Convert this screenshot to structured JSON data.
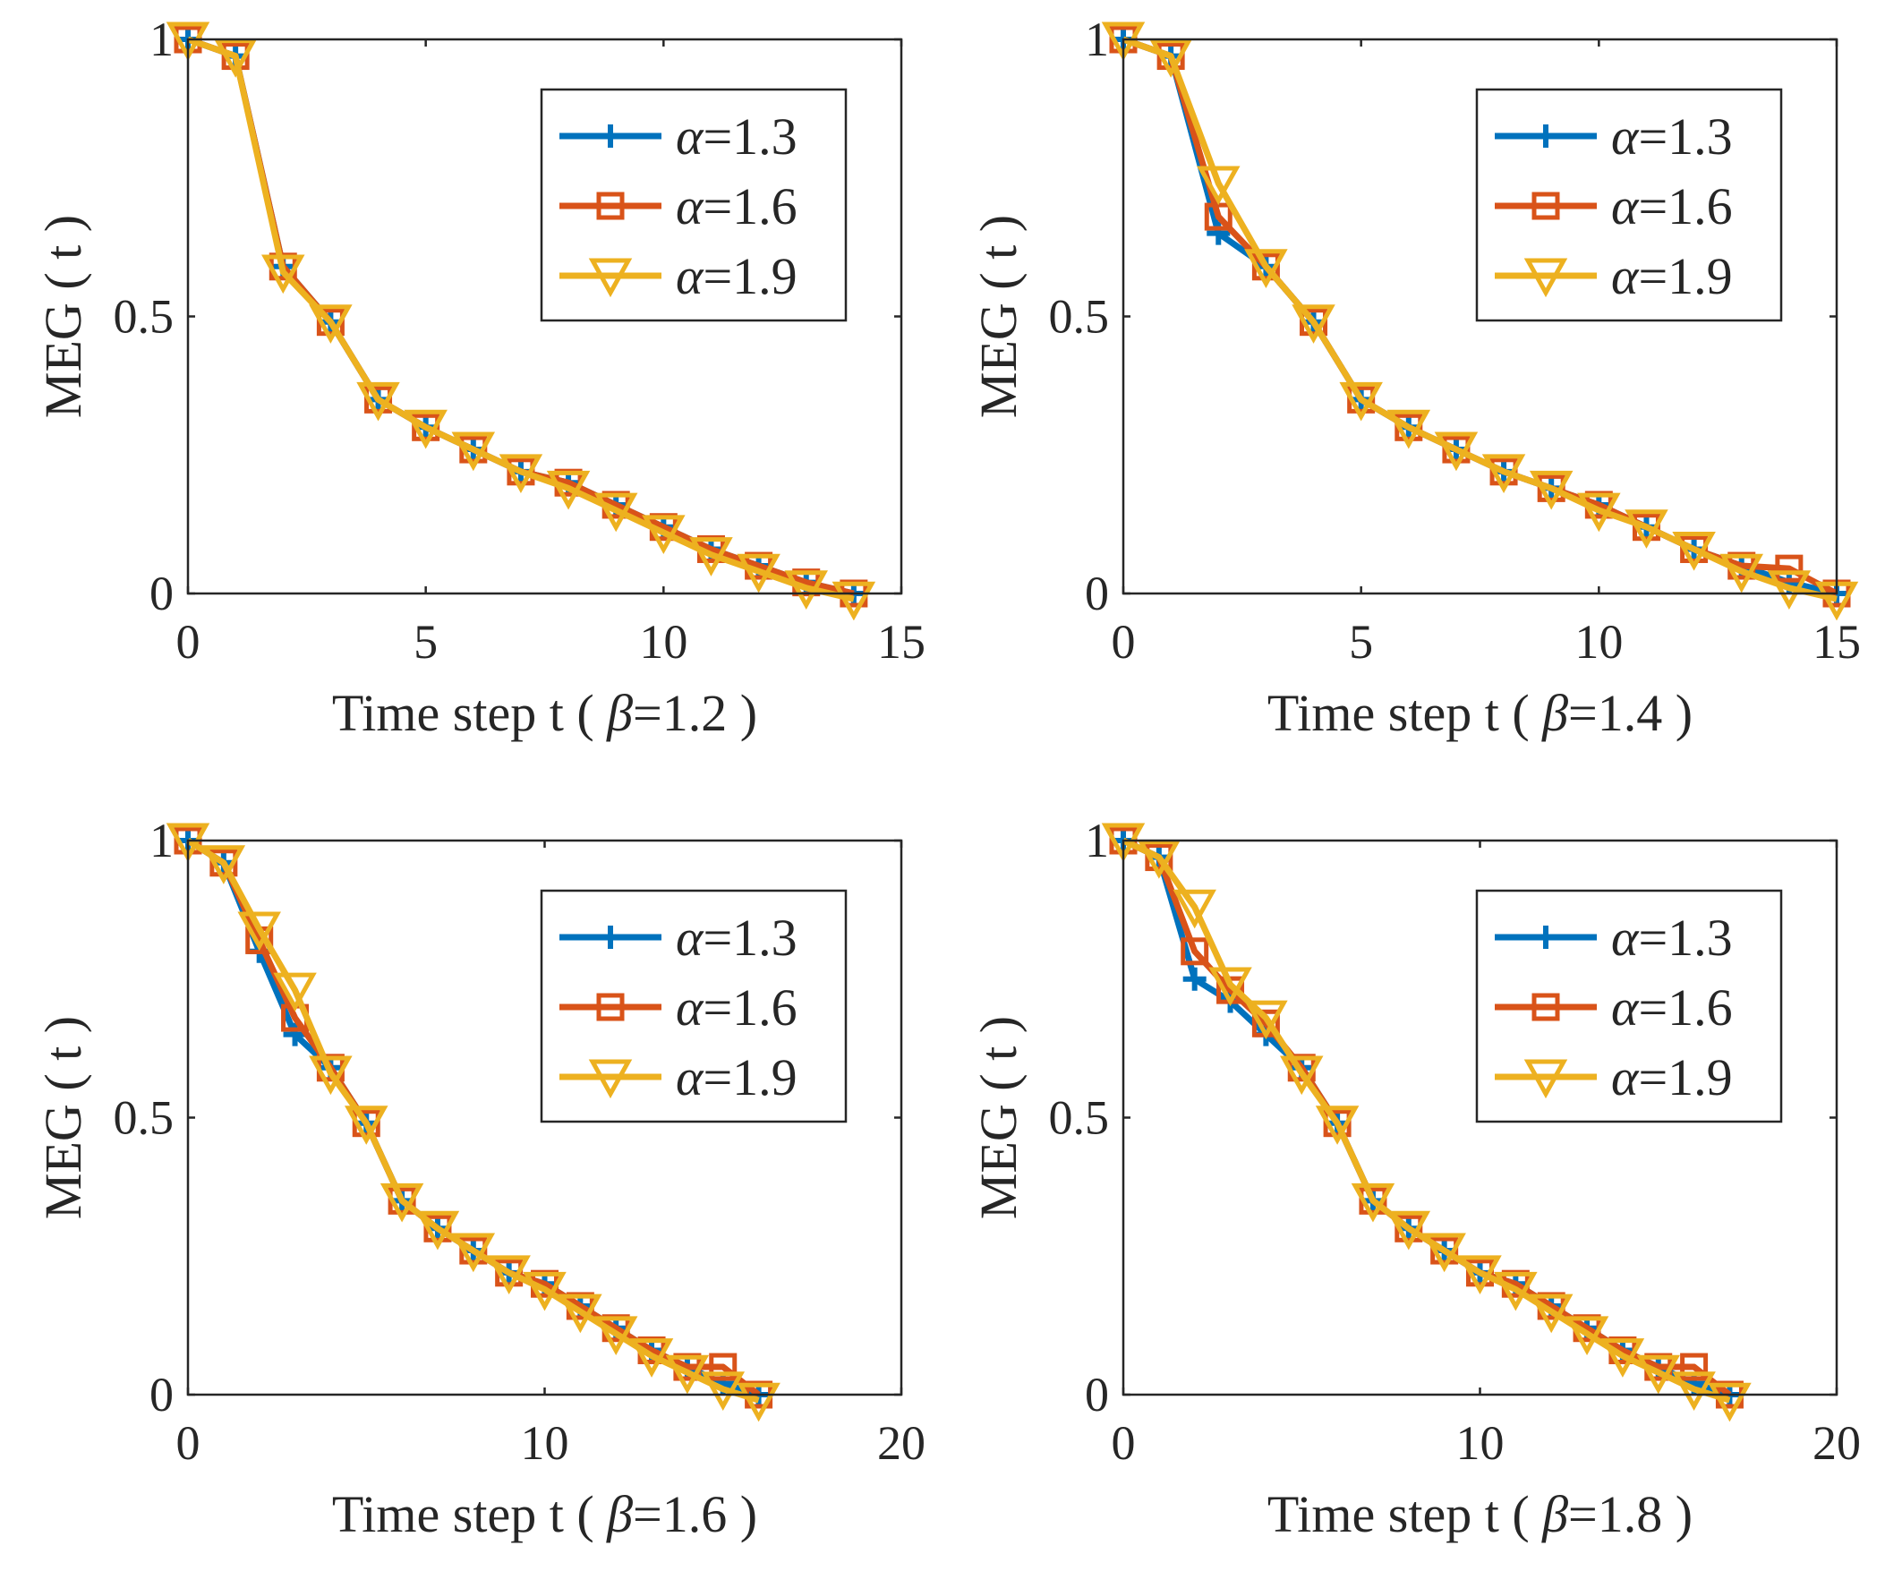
{
  "figure": {
    "colors": {
      "series_1": "#0072BD",
      "series_2": "#D95319",
      "series_3": "#EDB120",
      "axes": "#262626"
    },
    "ylabel": "MEG ( t )"
  },
  "chart_data": [
    {
      "type": "line",
      "title": "",
      "xlabel": "Time step t ( β=1.2 )",
      "xlabel_prefix": "Time step t ( ",
      "xlabel_symbol": "β",
      "xlabel_suffix": "=1.2 )",
      "ylabel": "MEG ( t )",
      "xlim": [
        0,
        15
      ],
      "ylim": [
        0,
        1
      ],
      "xticks": [
        0,
        5,
        10,
        15
      ],
      "xtick_labels": [
        "0",
        "5",
        "10",
        "15"
      ],
      "yticks": [
        0,
        0.5,
        1
      ],
      "ytick_labels": [
        "0",
        "0.5",
        "1"
      ],
      "legend_position": "top-right",
      "series": [
        {
          "name": "α=1.3",
          "symbol": "α",
          "value_text": "=1.3",
          "marker": "plus",
          "color": "#0072BD",
          "x": [
            0,
            1,
            2,
            3,
            4,
            5,
            6,
            7,
            8,
            9,
            10,
            11,
            12,
            13,
            14
          ],
          "y": [
            1.0,
            0.97,
            0.59,
            0.49,
            0.35,
            0.3,
            0.26,
            0.22,
            0.2,
            0.16,
            0.12,
            0.08,
            0.05,
            0.02,
            0.0
          ]
        },
        {
          "name": "α=1.6",
          "symbol": "α",
          "value_text": "=1.6",
          "marker": "square",
          "color": "#D95319",
          "x": [
            0,
            1,
            2,
            3,
            4,
            5,
            6,
            7,
            8,
            9,
            10,
            11,
            12,
            13,
            14
          ],
          "y": [
            1.0,
            0.97,
            0.59,
            0.49,
            0.35,
            0.3,
            0.26,
            0.22,
            0.2,
            0.16,
            0.12,
            0.08,
            0.05,
            0.02,
            0.0
          ]
        },
        {
          "name": "α=1.9",
          "symbol": "α",
          "value_text": "=1.9",
          "marker": "triangle-down",
          "color": "#EDB120",
          "x": [
            0,
            1,
            2,
            3,
            4,
            5,
            6,
            7,
            8,
            9,
            10,
            11,
            12,
            13,
            14
          ],
          "y": [
            1.0,
            0.97,
            0.58,
            0.49,
            0.35,
            0.3,
            0.26,
            0.22,
            0.19,
            0.15,
            0.11,
            0.07,
            0.04,
            0.01,
            -0.01
          ]
        }
      ]
    },
    {
      "type": "line",
      "title": "",
      "xlabel": "Time step t ( β=1.4 )",
      "xlabel_prefix": "Time step t ( ",
      "xlabel_symbol": "β",
      "xlabel_suffix": "=1.4 )",
      "ylabel": "MEG ( t )",
      "xlim": [
        0,
        15
      ],
      "ylim": [
        0,
        1
      ],
      "xticks": [
        0,
        5,
        10,
        15
      ],
      "xtick_labels": [
        "0",
        "5",
        "10",
        "15"
      ],
      "yticks": [
        0,
        0.5,
        1
      ],
      "ytick_labels": [
        "0",
        "0.5",
        "1"
      ],
      "legend_position": "top-right",
      "series": [
        {
          "name": "α=1.3",
          "symbol": "α",
          "value_text": "=1.3",
          "marker": "plus",
          "color": "#0072BD",
          "x": [
            0,
            1,
            2,
            3,
            4,
            5,
            6,
            7,
            8,
            9,
            10,
            11,
            12,
            13,
            14,
            15
          ],
          "y": [
            1.0,
            0.97,
            0.65,
            0.59,
            0.49,
            0.35,
            0.3,
            0.26,
            0.22,
            0.19,
            0.16,
            0.12,
            0.08,
            0.05,
            0.02,
            0.0
          ]
        },
        {
          "name": "α=1.6",
          "symbol": "α",
          "value_text": "=1.6",
          "marker": "square",
          "color": "#D95319",
          "x": [
            0,
            1,
            2,
            3,
            4,
            5,
            6,
            7,
            8,
            9,
            10,
            11,
            12,
            13,
            14,
            15
          ],
          "y": [
            1.0,
            0.97,
            0.68,
            0.59,
            0.49,
            0.35,
            0.3,
            0.26,
            0.22,
            0.19,
            0.16,
            0.12,
            0.08,
            0.05,
            0.045,
            0.0
          ]
        },
        {
          "name": "α=1.9",
          "symbol": "α",
          "value_text": "=1.9",
          "marker": "triangle-down",
          "color": "#EDB120",
          "x": [
            0,
            1,
            2,
            3,
            4,
            5,
            6,
            7,
            8,
            9,
            10,
            11,
            12,
            13,
            14,
            15
          ],
          "y": [
            1.0,
            0.97,
            0.74,
            0.59,
            0.49,
            0.35,
            0.3,
            0.26,
            0.22,
            0.19,
            0.15,
            0.12,
            0.08,
            0.04,
            0.01,
            -0.01
          ]
        }
      ]
    },
    {
      "type": "line",
      "title": "",
      "xlabel": "Time step t ( β=1.6 )",
      "xlabel_prefix": "Time step t ( ",
      "xlabel_symbol": "β",
      "xlabel_suffix": "=1.6 )",
      "ylabel": "MEG ( t )",
      "xlim": [
        0,
        20
      ],
      "ylim": [
        0,
        1
      ],
      "xticks": [
        0,
        10,
        20
      ],
      "xtick_labels": [
        "0",
        "10",
        "20"
      ],
      "yticks": [
        0,
        0.5,
        1
      ],
      "ytick_labels": [
        "0",
        "0.5",
        "1"
      ],
      "legend_position": "top-right",
      "series": [
        {
          "name": "α=1.3",
          "symbol": "α",
          "value_text": "=1.3",
          "marker": "plus",
          "color": "#0072BD",
          "x": [
            0,
            1,
            2,
            3,
            4,
            5,
            6,
            7,
            8,
            9,
            10,
            11,
            12,
            13,
            14,
            15,
            16
          ],
          "y": [
            1.0,
            0.96,
            0.8,
            0.65,
            0.59,
            0.49,
            0.35,
            0.3,
            0.26,
            0.22,
            0.2,
            0.16,
            0.12,
            0.08,
            0.05,
            0.02,
            0.0
          ]
        },
        {
          "name": "α=1.6",
          "symbol": "α",
          "value_text": "=1.6",
          "marker": "square",
          "color": "#D95319",
          "x": [
            0,
            1,
            2,
            3,
            4,
            5,
            6,
            7,
            8,
            9,
            10,
            11,
            12,
            13,
            14,
            15,
            16
          ],
          "y": [
            1.0,
            0.96,
            0.82,
            0.68,
            0.59,
            0.49,
            0.35,
            0.3,
            0.26,
            0.22,
            0.2,
            0.16,
            0.12,
            0.08,
            0.05,
            0.05,
            0.0
          ]
        },
        {
          "name": "α=1.9",
          "symbol": "α",
          "value_text": "=1.9",
          "marker": "triangle-down",
          "color": "#EDB120",
          "x": [
            0,
            1,
            2,
            3,
            4,
            5,
            6,
            7,
            8,
            9,
            10,
            11,
            12,
            13,
            14,
            15,
            16
          ],
          "y": [
            1.0,
            0.96,
            0.84,
            0.73,
            0.58,
            0.49,
            0.35,
            0.3,
            0.26,
            0.22,
            0.19,
            0.15,
            0.11,
            0.07,
            0.04,
            0.01,
            -0.01
          ]
        }
      ]
    },
    {
      "type": "line",
      "title": "",
      "xlabel": "Time step t ( β=1.8 )",
      "xlabel_prefix": "Time step t ( ",
      "xlabel_symbol": "β",
      "xlabel_suffix": "=1.8 )",
      "ylabel": "MEG ( t )",
      "xlim": [
        0,
        20
      ],
      "ylim": [
        0,
        1
      ],
      "xticks": [
        0,
        10,
        20
      ],
      "xtick_labels": [
        "0",
        "10",
        "20"
      ],
      "yticks": [
        0,
        0.5,
        1
      ],
      "ytick_labels": [
        "0",
        "0.5",
        "1"
      ],
      "legend_position": "top-right",
      "series": [
        {
          "name": "α=1.3",
          "symbol": "α",
          "value_text": "=1.3",
          "marker": "plus",
          "color": "#0072BD",
          "x": [
            0,
            1,
            2,
            3,
            4,
            5,
            6,
            7,
            8,
            9,
            10,
            11,
            12,
            13,
            14,
            15,
            16,
            17
          ],
          "y": [
            1.0,
            0.97,
            0.75,
            0.71,
            0.65,
            0.59,
            0.49,
            0.35,
            0.3,
            0.26,
            0.22,
            0.2,
            0.16,
            0.12,
            0.08,
            0.05,
            0.02,
            0.0
          ]
        },
        {
          "name": "α=1.6",
          "symbol": "α",
          "value_text": "=1.6",
          "marker": "square",
          "color": "#D95319",
          "x": [
            0,
            1,
            2,
            3,
            4,
            5,
            6,
            7,
            8,
            9,
            10,
            11,
            12,
            13,
            14,
            15,
            16,
            17
          ],
          "y": [
            1.0,
            0.97,
            0.8,
            0.73,
            0.67,
            0.59,
            0.49,
            0.35,
            0.3,
            0.26,
            0.22,
            0.2,
            0.16,
            0.12,
            0.08,
            0.05,
            0.05,
            0.0
          ]
        },
        {
          "name": "α=1.9",
          "symbol": "α",
          "value_text": "=1.9",
          "marker": "triangle-down",
          "color": "#EDB120",
          "x": [
            0,
            1,
            2,
            3,
            4,
            5,
            6,
            7,
            8,
            9,
            10,
            11,
            12,
            13,
            14,
            15,
            16,
            17
          ],
          "y": [
            1.0,
            0.97,
            0.88,
            0.74,
            0.68,
            0.58,
            0.49,
            0.35,
            0.3,
            0.26,
            0.22,
            0.19,
            0.15,
            0.11,
            0.07,
            0.04,
            0.01,
            -0.01
          ]
        }
      ]
    }
  ]
}
